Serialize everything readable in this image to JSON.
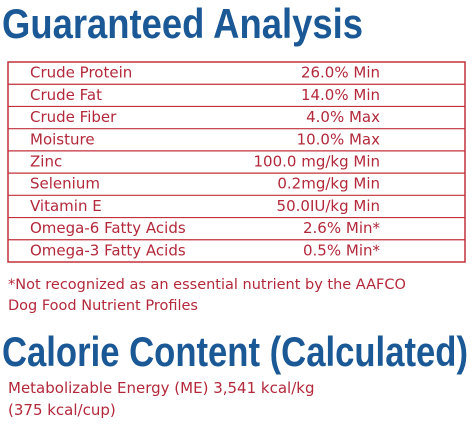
{
  "header": {
    "title": "Guaranteed Analysis"
  },
  "table": {
    "rows": [
      [
        "Crude Protein",
        "26.0% Min"
      ],
      [
        "Crude Fat",
        "14.0% Min"
      ],
      [
        "Crude Fiber",
        "4.0% Max"
      ],
      [
        "Moisture",
        "10.0% Max"
      ],
      [
        "Zinc",
        "100.0 mg/kg Min"
      ],
      [
        "Selenium",
        "0.2mg/kg Min"
      ],
      [
        "Vitamin E",
        "50.0IU/kg Min"
      ],
      [
        "Omega-6 Fatty Acids",
        "2.6% Min*"
      ],
      [
        "Omega-3 Fatty Acids",
        "0.5% Min*"
      ]
    ]
  },
  "footnote": {
    "lines": [
      "*Not recognized as an essential nutrient by the AAFCO",
      "Dog Food Nutrient Profiles"
    ]
  },
  "calorie": {
    "title": "Calorie Content (Calculated)",
    "lines": [
      "Metabolizable Energy (ME) 3,541 kcal/kg",
      "(375 kcal/cup)"
    ]
  }
}
